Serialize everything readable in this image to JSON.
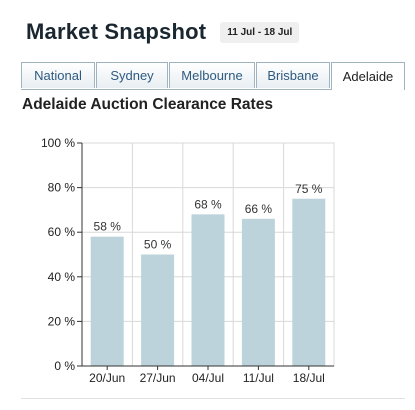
{
  "header": {
    "title": "Market Snapshot",
    "date_range": "11 Jul - 18 Jul"
  },
  "tabs": [
    {
      "label": "National",
      "active": false
    },
    {
      "label": "Sydney",
      "active": false
    },
    {
      "label": "Melbourne",
      "active": false
    },
    {
      "label": "Brisbane",
      "active": false
    },
    {
      "label": "Adelaide",
      "active": true
    }
  ],
  "colors": {
    "bar": "#bcd3db",
    "grid": "#d8d8d8",
    "tab_text": "#2e5a80"
  },
  "chart_data": {
    "type": "bar",
    "title": "Adelaide Auction Clearance Rates",
    "categories": [
      "20/Jun",
      "27/Jun",
      "04/Jul",
      "11/Jul",
      "18/Jul"
    ],
    "values": [
      58,
      50,
      68,
      66,
      75
    ],
    "data_labels": [
      "58 %",
      "50 %",
      "68 %",
      "66 %",
      "75 %"
    ],
    "y_ticks": [
      0,
      20,
      40,
      60,
      80,
      100
    ],
    "y_tick_labels": [
      "0 %",
      "20 %",
      "40 %",
      "60 %",
      "80 %",
      "100 %"
    ],
    "ylim": [
      0,
      100
    ],
    "grid": true,
    "xlabel": "",
    "ylabel": ""
  }
}
